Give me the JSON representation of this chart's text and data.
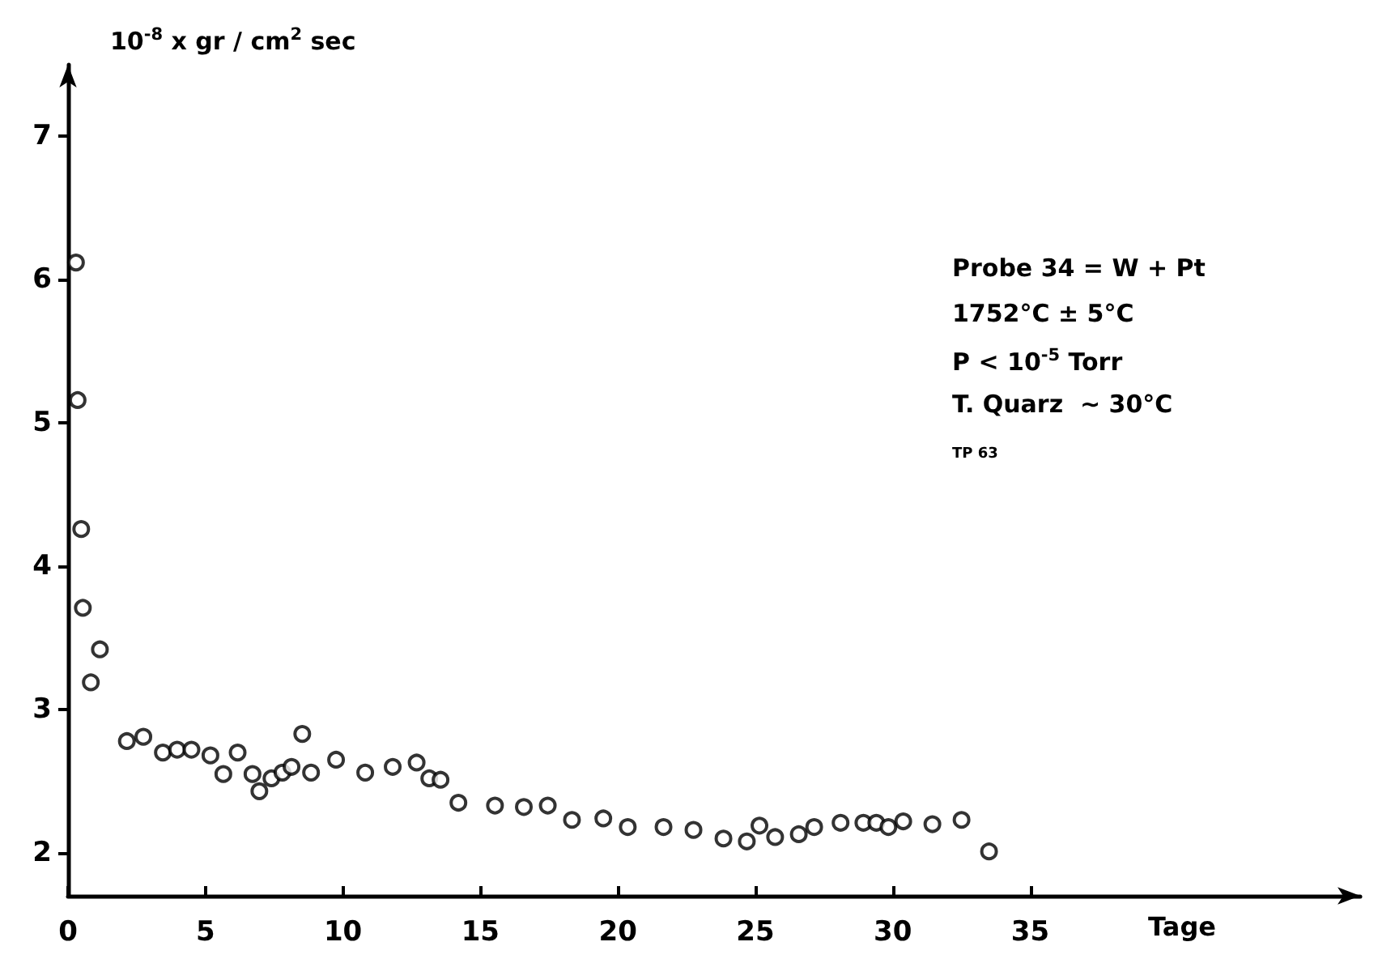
{
  "chart_data": {
    "type": "scatter",
    "ylabel": "10$^{-8}$ x gr / cm$^{2}$ sec",
    "xlabel": "Tage",
    "x": [
      0.29,
      0.35,
      0.48,
      0.54,
      0.83,
      1.16,
      2.14,
      2.74,
      3.45,
      3.97,
      4.49,
      5.18,
      5.65,
      6.17,
      6.71,
      6.96,
      7.4,
      7.8,
      8.13,
      8.52,
      8.84,
      9.75,
      10.81,
      11.81,
      12.68,
      13.14,
      13.55,
      14.2,
      15.53,
      16.58,
      17.45,
      18.33,
      19.47,
      20.36,
      21.66,
      22.75,
      23.84,
      24.69,
      25.15,
      25.72,
      26.58,
      27.14,
      28.1,
      28.93,
      29.4,
      29.84,
      30.38,
      31.44,
      32.5,
      33.5
    ],
    "values": [
      6.12,
      5.16,
      4.26,
      3.71,
      3.19,
      3.42,
      2.78,
      2.81,
      2.7,
      2.72,
      2.72,
      2.68,
      2.55,
      2.7,
      2.55,
      2.43,
      2.52,
      2.56,
      2.6,
      2.83,
      2.56,
      2.65,
      2.56,
      2.6,
      2.63,
      2.52,
      2.51,
      2.35,
      2.33,
      2.32,
      2.33,
      2.23,
      2.24,
      2.18,
      2.18,
      2.16,
      2.1,
      2.08,
      2.19,
      2.11,
      2.13,
      2.18,
      2.21,
      2.21,
      2.21,
      2.18,
      2.22,
      2.2,
      2.23,
      2.01
    ],
    "color": "#000000",
    "marker": "circle",
    "xlim": [
      0,
      47
    ],
    "xticks": [
      0,
      5,
      10,
      15,
      20,
      25,
      30,
      35
    ],
    "ylim": [
      1.7,
      7.5
    ],
    "yticks": [
      2,
      3,
      4,
      5,
      6,
      7
    ],
    "grid": false,
    "annotations": [
      "Probe 34 = W + Pt",
      "1752°C ± 5°C",
      "P < 10$^{-5}$ Torr",
      "T. Quarz  ∼ 30°C",
      "TP 63"
    ]
  }
}
